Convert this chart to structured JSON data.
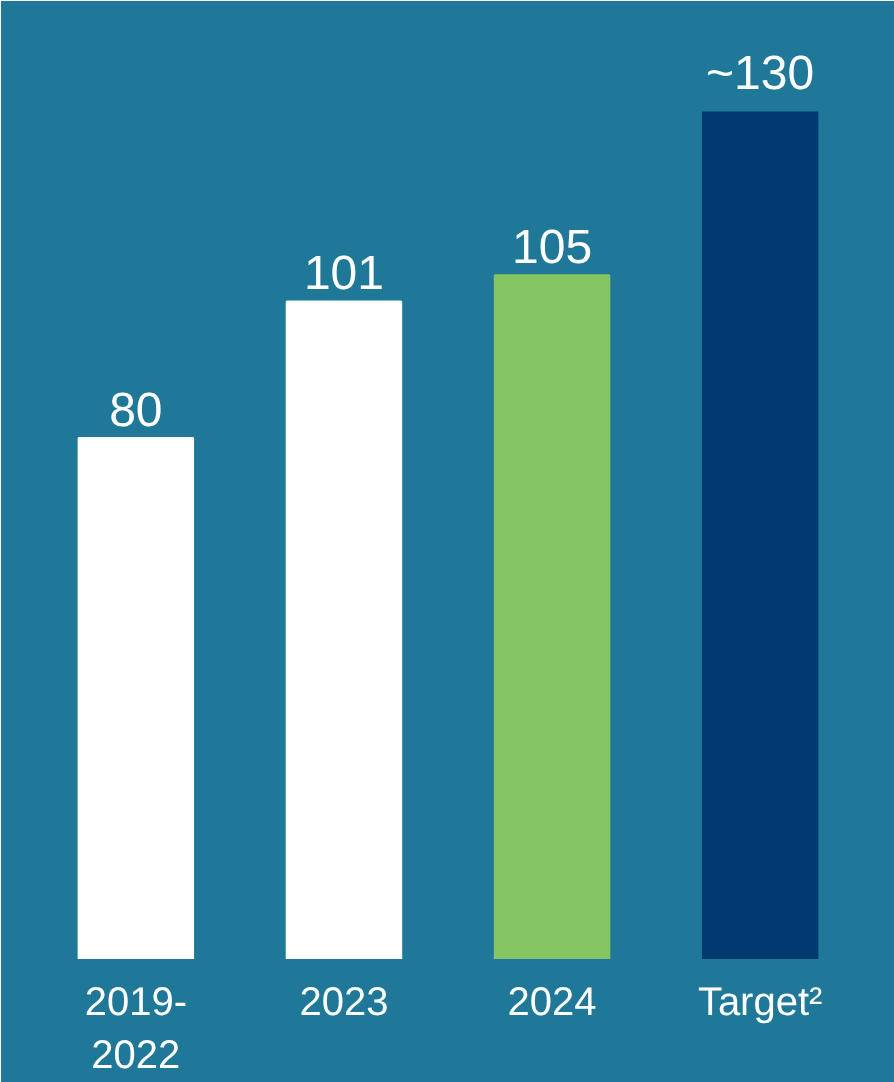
{
  "chart_data": {
    "type": "bar",
    "categories": [
      "2019-2022",
      "2023",
      "2024",
      "Target²"
    ],
    "values": [
      80,
      101,
      105,
      130
    ],
    "colors": [
      "#ffffff",
      "#ffffff",
      "#86c564",
      "#003a70"
    ],
    "value_labels": [
      "80",
      "101",
      "105",
      "~130"
    ],
    "grid": false
  }
}
